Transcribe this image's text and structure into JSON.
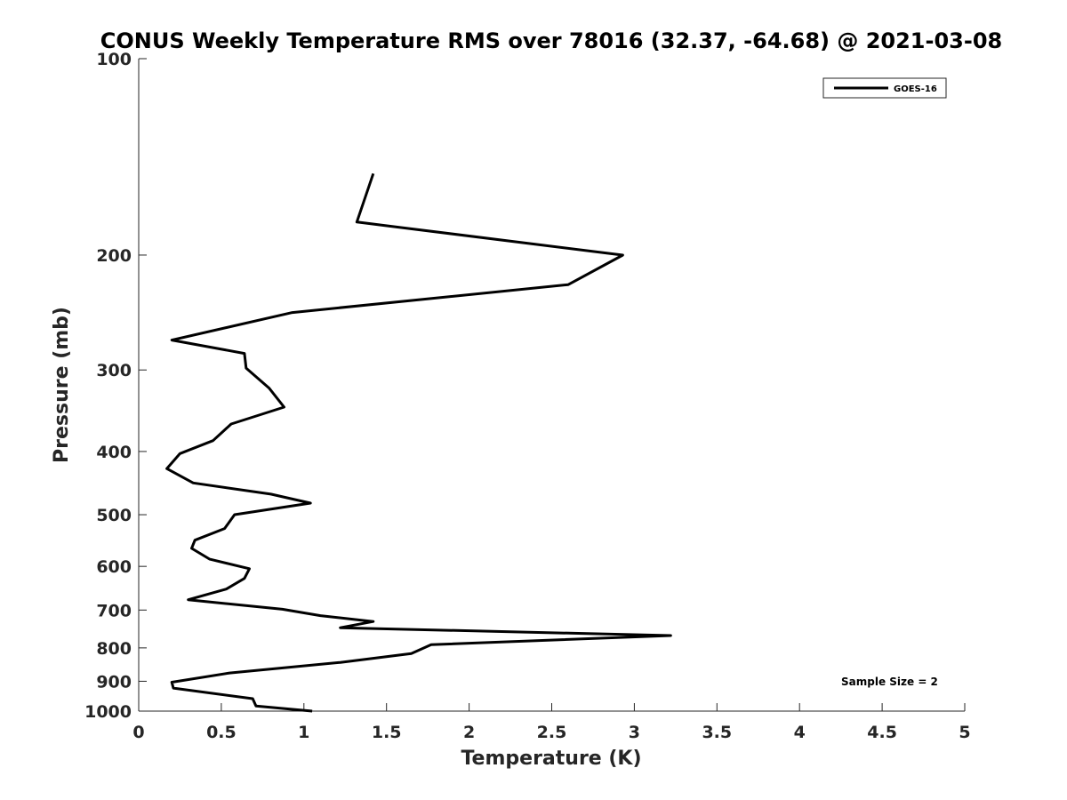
{
  "chart_data": {
    "type": "line",
    "title": "CONUS Weekly Temperature RMS over 78016 (32.37, -64.68) @ 2021-03-08",
    "xlabel": "Temperature (K)",
    "ylabel": "Pressure (mb)",
    "xlim": [
      0,
      5
    ],
    "ylim": [
      100,
      1000
    ],
    "y_scale": "log",
    "y_reversed": true,
    "grid": false,
    "legend_position": "top-right",
    "x_ticks": [
      "0",
      "0.5",
      "1",
      "1.5",
      "2",
      "2.5",
      "3",
      "3.5",
      "4",
      "4.5",
      "5"
    ],
    "y_ticks": [
      "100",
      "200",
      "300",
      "400",
      "500",
      "600",
      "700",
      "800",
      "900",
      "1000"
    ],
    "annotation": "Sample Size = 2",
    "series": [
      {
        "name": "GOES-16",
        "color": "#000000",
        "x": [
          1.42,
          1.32,
          2.93,
          2.6,
          0.93,
          0.2,
          0.64,
          0.65,
          0.79,
          0.88,
          0.56,
          0.45,
          0.25,
          0.17,
          0.33,
          0.8,
          1.04,
          0.58,
          0.52,
          0.34,
          0.32,
          0.43,
          0.67,
          0.64,
          0.53,
          0.3,
          0.87,
          1.1,
          1.42,
          1.22,
          3.22,
          1.77,
          1.65,
          1.22,
          0.55,
          0.2,
          0.21,
          0.69,
          0.71,
          1.05
        ],
        "y": [
          150,
          178,
          200,
          222,
          245,
          270,
          283,
          298,
          320,
          342,
          363,
          385,
          403,
          425,
          447,
          465,
          480,
          500,
          525,
          547,
          563,
          585,
          605,
          626,
          650,
          675,
          698,
          714,
          729,
          745,
          766,
          791,
          816,
          842,
          874,
          903,
          922,
          957,
          982,
          1000
        ]
      }
    ]
  }
}
